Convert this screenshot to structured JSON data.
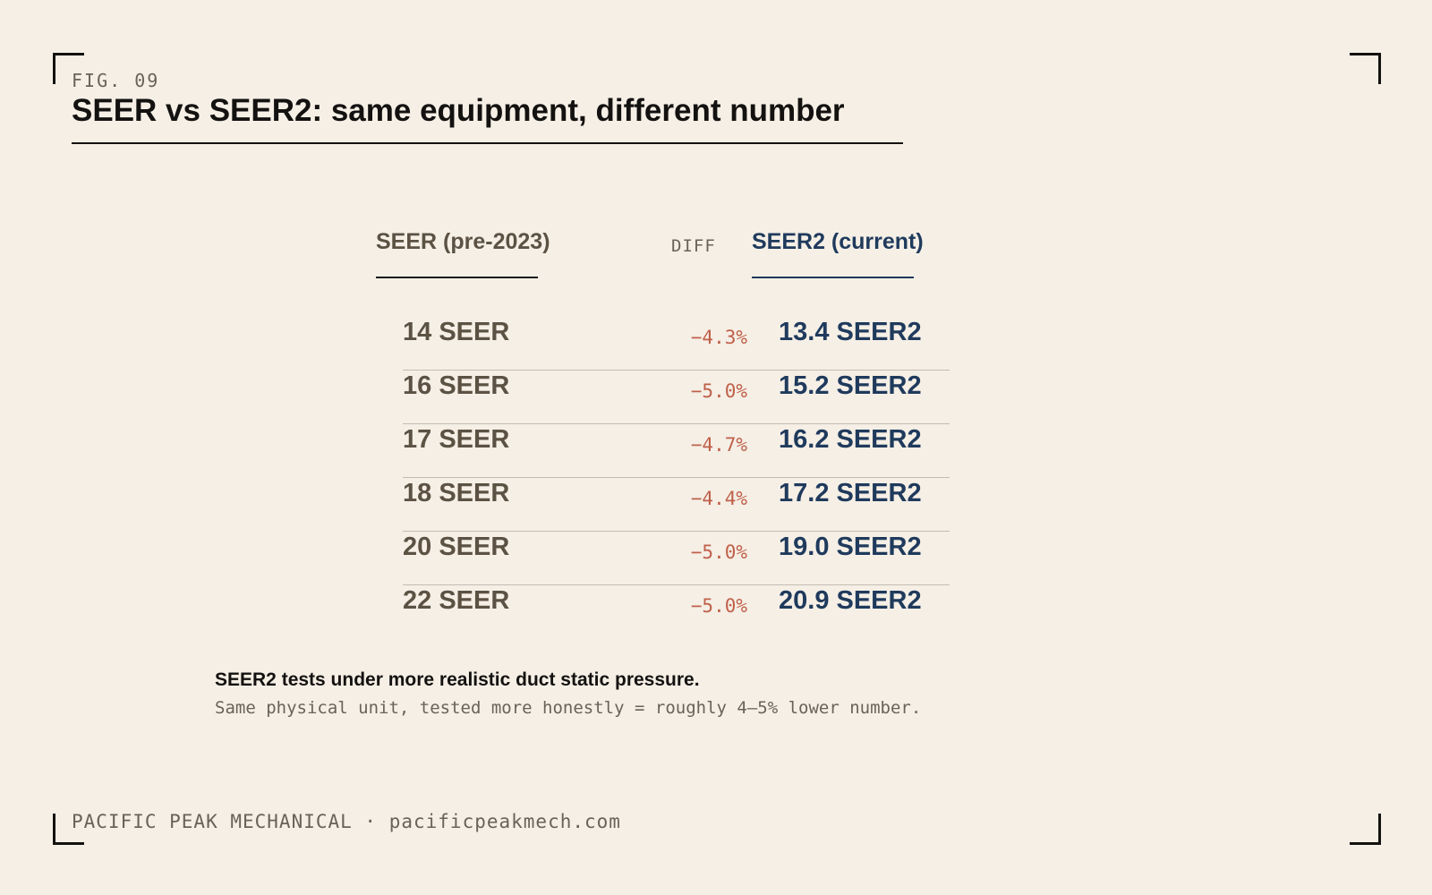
{
  "figure": {
    "label": "FIG. 09",
    "title": "SEER vs SEER2: same equipment, different number"
  },
  "table": {
    "headers": {
      "seer": "SEER (pre-2023)",
      "diff": "DIFF",
      "seer2": "SEER2 (current)"
    },
    "rows": [
      {
        "seer": "14 SEER",
        "diff": "−4.3%",
        "seer2": "13.4 SEER2"
      },
      {
        "seer": "16 SEER",
        "diff": "−5.0%",
        "seer2": "15.2 SEER2"
      },
      {
        "seer": "17 SEER",
        "diff": "−4.7%",
        "seer2": "16.2 SEER2"
      },
      {
        "seer": "18 SEER",
        "diff": "−4.4%",
        "seer2": "17.2 SEER2"
      },
      {
        "seer": "20 SEER",
        "diff": "−5.0%",
        "seer2": "19.0 SEER2"
      },
      {
        "seer": "22 SEER",
        "diff": "−5.0%",
        "seer2": "20.9 SEER2"
      }
    ]
  },
  "note": {
    "headline": "SEER2 tests under more realistic duct static pressure.",
    "detail": "Same physical unit, tested more honestly = roughly 4–5% lower number."
  },
  "footer": {
    "text": "PACIFIC PEAK MECHANICAL · pacificpeakmech.com"
  },
  "colors": {
    "background": "#f5efe6",
    "ink": "#141210",
    "seer": "#5c5244",
    "seer2": "#1f3a5c",
    "diff": "#c0604a",
    "muted": "#6b6257"
  }
}
